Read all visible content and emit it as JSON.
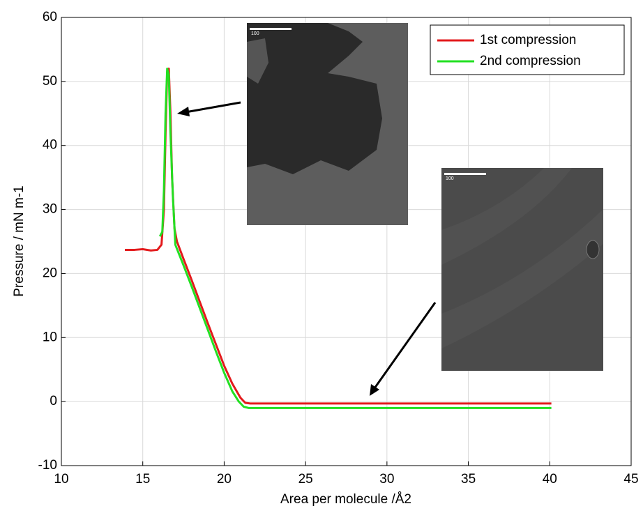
{
  "chart_data": {
    "type": "line",
    "xlabel": "Area per molecule /Å2",
    "ylabel": "Pressure / mN m-1",
    "xlim": [
      10,
      45
    ],
    "xticks": [
      10,
      15,
      20,
      25,
      30,
      35,
      40,
      45
    ],
    "ylim": [
      -10,
      60
    ],
    "yticks": [
      -10,
      0,
      10,
      20,
      30,
      40,
      50,
      60
    ],
    "grid": true,
    "legend": "upper right",
    "series": [
      {
        "name": "1st compression",
        "color": "#e31a1c",
        "x": [
          13.9,
          14.5,
          15.0,
          15.5,
          15.9,
          16.15,
          16.3,
          16.4,
          16.5,
          16.6,
          16.7,
          16.8,
          16.95,
          17.1,
          17.5,
          18,
          18.5,
          19,
          19.5,
          20,
          20.5,
          21,
          21.3,
          21.6,
          25,
          30,
          35,
          40.1
        ],
        "values": [
          23.7,
          23.7,
          23.8,
          23.6,
          23.7,
          24.5,
          30,
          42,
          51.5,
          52,
          45,
          35,
          27,
          25,
          22.3,
          19,
          15.6,
          12.2,
          8.9,
          5.6,
          2.8,
          0.6,
          -0.2,
          -0.3,
          -0.3,
          -0.3,
          -0.3,
          -0.3
        ]
      },
      {
        "name": "2nd compression",
        "color": "#22e022",
        "x": [
          16.05,
          16.2,
          16.3,
          16.4,
          16.5,
          16.6,
          16.7,
          16.85,
          17.0,
          17.5,
          18,
          18.5,
          19,
          19.5,
          20,
          20.5,
          20.9,
          21.2,
          21.5,
          25,
          30,
          35,
          40.1
        ],
        "values": [
          25.8,
          26.5,
          33,
          45,
          52,
          51,
          42,
          32,
          24.5,
          21.3,
          18,
          14.6,
          11.2,
          7.8,
          4.5,
          1.6,
          0,
          -0.8,
          -1,
          -1,
          -1,
          -1,
          -1
        ]
      }
    ],
    "insets": [
      {
        "scale_label": "100"
      },
      {
        "scale_label": "100"
      }
    ]
  }
}
